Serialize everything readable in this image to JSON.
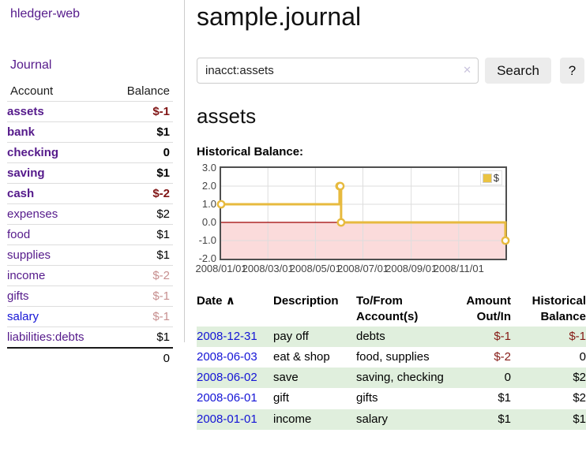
{
  "app": {
    "title": "hledger-web",
    "nav_journal": "Journal"
  },
  "sidebar": {
    "headers": {
      "account": "Account",
      "balance": "Balance"
    },
    "accounts": [
      {
        "name": "assets",
        "depth": 1,
        "balance": "$-1",
        "bold": true,
        "neg": "strong",
        "link": "purple"
      },
      {
        "name": "bank",
        "depth": 2,
        "balance": "$1",
        "bold": true,
        "neg": "none",
        "link": "purple"
      },
      {
        "name": "checking",
        "depth": 3,
        "balance": "0",
        "bold": true,
        "neg": "none",
        "link": "purple"
      },
      {
        "name": "saving",
        "depth": 3,
        "balance": "$1",
        "bold": true,
        "neg": "none",
        "link": "purple"
      },
      {
        "name": "cash",
        "depth": 2,
        "balance": "$-2",
        "bold": true,
        "neg": "strong",
        "link": "purple"
      },
      {
        "name": "expenses",
        "depth": 1,
        "balance": "$2",
        "bold": false,
        "neg": "none",
        "link": "purple"
      },
      {
        "name": "food",
        "depth": 2,
        "balance": "$1",
        "bold": false,
        "neg": "none",
        "link": "purple"
      },
      {
        "name": "supplies",
        "depth": 2,
        "balance": "$1",
        "bold": false,
        "neg": "none",
        "link": "purple"
      },
      {
        "name": "income",
        "depth": 1,
        "balance": "$-2",
        "bold": false,
        "neg": "dim",
        "link": "purple"
      },
      {
        "name": "gifts",
        "depth": 2,
        "balance": "$-1",
        "bold": false,
        "neg": "dim",
        "link": "purple"
      },
      {
        "name": "salary",
        "depth": 2,
        "balance": "$-1",
        "bold": false,
        "neg": "dim",
        "link": "blue"
      },
      {
        "name": "liabilities:debts",
        "depth": 1,
        "balance": "$1",
        "bold": false,
        "neg": "none",
        "link": "purple"
      }
    ],
    "total": "0"
  },
  "header": {
    "title": "sample.journal"
  },
  "search": {
    "value": "inacct:assets",
    "clear_icon": "✕",
    "button_label": "Search",
    "help_label": "?"
  },
  "account_page": {
    "heading": "assets",
    "chart_label": "Historical Balance:"
  },
  "chart_data": {
    "type": "line",
    "step": true,
    "title": "Historical Balance:",
    "xlabel": "",
    "ylabel": "",
    "ylim": [
      -2,
      3
    ],
    "x_range_days": [
      0,
      365
    ],
    "grid": true,
    "legend": {
      "label": "$",
      "position": "top-right"
    },
    "y_ticks": [
      {
        "value": 3,
        "label": "3.0"
      },
      {
        "value": 2,
        "label": "2.0"
      },
      {
        "value": 1,
        "label": "1.0"
      },
      {
        "value": 0,
        "label": "0.0"
      },
      {
        "value": -1,
        "label": "-1.0"
      },
      {
        "value": -2,
        "label": "-2.0"
      }
    ],
    "x_ticks": [
      {
        "day": 0,
        "label": "2008/01/01"
      },
      {
        "day": 60,
        "label": "2008/03/01"
      },
      {
        "day": 121,
        "label": "2008/05/01"
      },
      {
        "day": 182,
        "label": "2008/07/01"
      },
      {
        "day": 244,
        "label": "2008/09/01"
      },
      {
        "day": 305,
        "label": "2008/11/01"
      }
    ],
    "series": [
      {
        "name": "$",
        "points": [
          {
            "date": "2008-01-01",
            "day": 0,
            "value": 1
          },
          {
            "date": "2008-06-01",
            "day": 152,
            "value": 2
          },
          {
            "date": "2008-06-02",
            "day": 153,
            "value": 2
          },
          {
            "date": "2008-06-03",
            "day": 154,
            "value": 0
          },
          {
            "date": "2008-12-31",
            "day": 365,
            "value": -1
          }
        ]
      }
    ],
    "colors": {
      "line": "#e7ba3e",
      "marker_fill": "#ffffff",
      "negative_region": "#fbdbdb",
      "zero_line": "#9e0000",
      "gridline": "#dedede",
      "border": "#4f4f4f",
      "legend_swatch": "#eac342"
    }
  },
  "register": {
    "headers": {
      "date": "Date",
      "sort_icon": "∧",
      "description": "Description",
      "accounts_line1": "To/From",
      "accounts_line2": "Account(s)",
      "amount_line1": "Amount",
      "amount_line2": "Out/In",
      "balance_line1": "Historical",
      "balance_line2": "Balance"
    },
    "rows": [
      {
        "date": "2008-12-31",
        "description": "pay off",
        "accounts": "debts",
        "amount": "$-1",
        "amount_neg": true,
        "balance": "$-1",
        "balance_neg": true
      },
      {
        "date": "2008-06-03",
        "description": "eat & shop",
        "accounts": "food, supplies",
        "amount": "$-2",
        "amount_neg": true,
        "balance": "0",
        "balance_neg": false
      },
      {
        "date": "2008-06-02",
        "description": "save",
        "accounts": "saving, checking",
        "amount": "0",
        "amount_neg": false,
        "balance": "$2",
        "balance_neg": false
      },
      {
        "date": "2008-06-01",
        "description": "gift",
        "accounts": "gifts",
        "amount": "$1",
        "amount_neg": false,
        "balance": "$2",
        "balance_neg": false
      },
      {
        "date": "2008-01-01",
        "description": "income",
        "accounts": "salary",
        "amount": "$1",
        "amount_neg": false,
        "balance": "$1",
        "balance_neg": false
      }
    ]
  }
}
